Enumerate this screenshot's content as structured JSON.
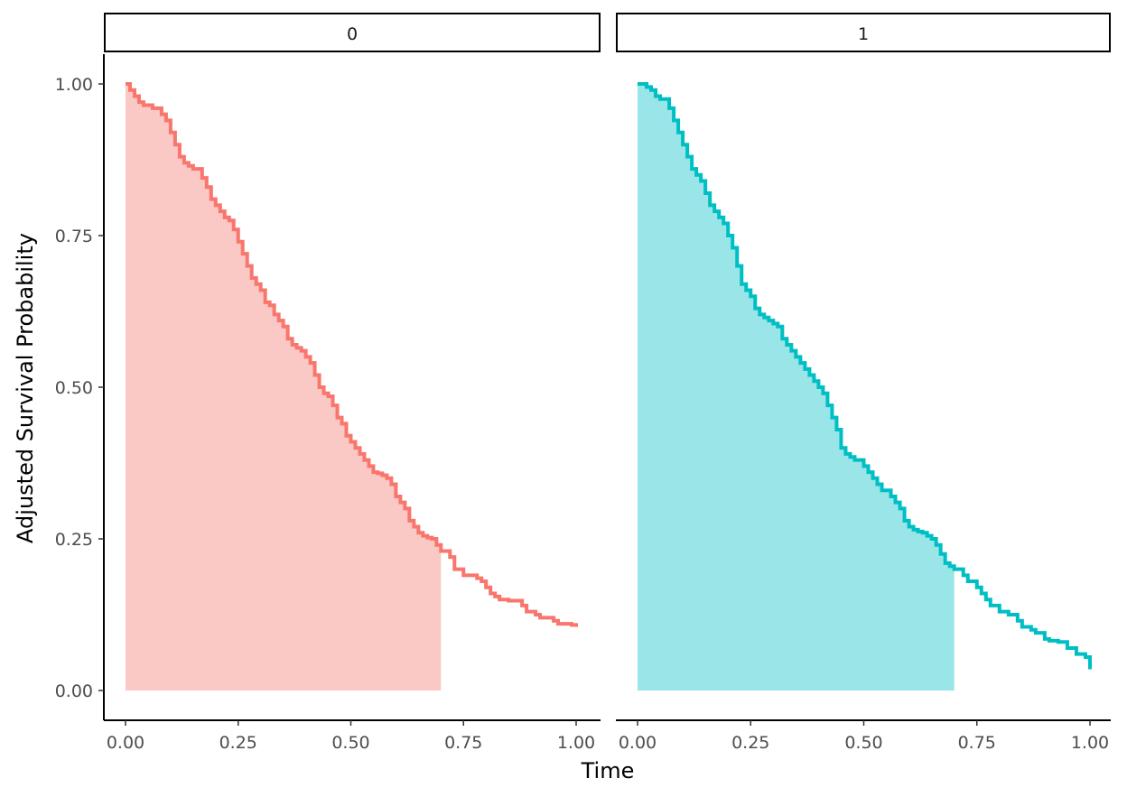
{
  "chart_data": {
    "type": "line",
    "xlabel": "Time",
    "ylabel": "Adjusted Survival Probability",
    "xlim": [
      0,
      1
    ],
    "ylim": [
      0,
      1
    ],
    "x_ticks": [
      "0.00",
      "0.25",
      "0.50",
      "0.75",
      "1.00"
    ],
    "y_ticks": [
      "0.00",
      "0.25",
      "0.50",
      "0.75",
      "1.00"
    ],
    "grid": false,
    "legend": "none",
    "shaded_area": {
      "from": 0,
      "to": 0.7
    },
    "panels": [
      {
        "strip_label": "0",
        "color": "#F8766D",
        "fill_color": "#FAC8C5",
        "x": [
          0,
          0.01,
          0.02,
          0.03,
          0.04,
          0.06,
          0.08,
          0.09,
          0.1,
          0.11,
          0.12,
          0.13,
          0.14,
          0.15,
          0.17,
          0.18,
          0.19,
          0.2,
          0.21,
          0.22,
          0.23,
          0.24,
          0.25,
          0.26,
          0.27,
          0.28,
          0.29,
          0.3,
          0.31,
          0.32,
          0.33,
          0.34,
          0.35,
          0.36,
          0.37,
          0.38,
          0.39,
          0.4,
          0.41,
          0.42,
          0.43,
          0.44,
          0.45,
          0.46,
          0.47,
          0.48,
          0.49,
          0.5,
          0.51,
          0.52,
          0.53,
          0.54,
          0.55,
          0.56,
          0.57,
          0.58,
          0.59,
          0.6,
          0.61,
          0.62,
          0.63,
          0.64,
          0.65,
          0.66,
          0.67,
          0.68,
          0.69,
          0.7,
          0.72,
          0.73,
          0.75,
          0.78,
          0.79,
          0.8,
          0.81,
          0.82,
          0.83,
          0.85,
          0.88,
          0.89,
          0.91,
          0.92,
          0.95,
          0.96,
          0.99,
          1.0
        ],
        "y": [
          1.0,
          0.99,
          0.98,
          0.97,
          0.965,
          0.96,
          0.95,
          0.94,
          0.92,
          0.9,
          0.88,
          0.87,
          0.865,
          0.86,
          0.845,
          0.83,
          0.81,
          0.8,
          0.79,
          0.78,
          0.775,
          0.76,
          0.74,
          0.72,
          0.7,
          0.68,
          0.67,
          0.66,
          0.64,
          0.635,
          0.62,
          0.61,
          0.6,
          0.58,
          0.57,
          0.565,
          0.56,
          0.55,
          0.54,
          0.52,
          0.5,
          0.49,
          0.485,
          0.47,
          0.45,
          0.44,
          0.42,
          0.41,
          0.4,
          0.39,
          0.38,
          0.37,
          0.36,
          0.358,
          0.355,
          0.35,
          0.34,
          0.32,
          0.31,
          0.3,
          0.28,
          0.27,
          0.26,
          0.255,
          0.252,
          0.25,
          0.24,
          0.23,
          0.22,
          0.2,
          0.19,
          0.185,
          0.18,
          0.17,
          0.16,
          0.155,
          0.15,
          0.148,
          0.14,
          0.13,
          0.125,
          0.12,
          0.115,
          0.11,
          0.108,
          0.105
        ]
      },
      {
        "strip_label": "1",
        "color": "#00BFC4",
        "fill_color": "#99E5E7",
        "x": [
          0,
          0.02,
          0.03,
          0.04,
          0.05,
          0.07,
          0.08,
          0.09,
          0.1,
          0.11,
          0.12,
          0.13,
          0.14,
          0.15,
          0.16,
          0.17,
          0.18,
          0.19,
          0.2,
          0.21,
          0.22,
          0.23,
          0.24,
          0.25,
          0.26,
          0.27,
          0.28,
          0.29,
          0.3,
          0.31,
          0.32,
          0.33,
          0.34,
          0.35,
          0.36,
          0.37,
          0.38,
          0.39,
          0.4,
          0.41,
          0.42,
          0.43,
          0.44,
          0.45,
          0.46,
          0.47,
          0.48,
          0.5,
          0.51,
          0.52,
          0.53,
          0.54,
          0.56,
          0.57,
          0.58,
          0.59,
          0.6,
          0.61,
          0.62,
          0.63,
          0.64,
          0.65,
          0.66,
          0.67,
          0.68,
          0.69,
          0.7,
          0.72,
          0.73,
          0.75,
          0.76,
          0.77,
          0.78,
          0.8,
          0.82,
          0.84,
          0.85,
          0.87,
          0.88,
          0.9,
          0.91,
          0.93,
          0.95,
          0.97,
          0.99,
          1.0
        ],
        "y": [
          1.0,
          0.995,
          0.99,
          0.98,
          0.975,
          0.96,
          0.94,
          0.92,
          0.9,
          0.88,
          0.86,
          0.85,
          0.84,
          0.82,
          0.8,
          0.79,
          0.78,
          0.77,
          0.75,
          0.73,
          0.7,
          0.67,
          0.66,
          0.65,
          0.63,
          0.62,
          0.615,
          0.61,
          0.605,
          0.6,
          0.58,
          0.57,
          0.56,
          0.55,
          0.54,
          0.53,
          0.52,
          0.51,
          0.5,
          0.49,
          0.47,
          0.45,
          0.43,
          0.4,
          0.39,
          0.385,
          0.38,
          0.37,
          0.36,
          0.35,
          0.34,
          0.33,
          0.32,
          0.31,
          0.3,
          0.28,
          0.27,
          0.265,
          0.262,
          0.26,
          0.255,
          0.25,
          0.24,
          0.225,
          0.21,
          0.205,
          0.2,
          0.19,
          0.18,
          0.17,
          0.16,
          0.15,
          0.14,
          0.13,
          0.125,
          0.115,
          0.105,
          0.1,
          0.095,
          0.085,
          0.082,
          0.08,
          0.07,
          0.06,
          0.055,
          0.035
        ]
      }
    ]
  }
}
